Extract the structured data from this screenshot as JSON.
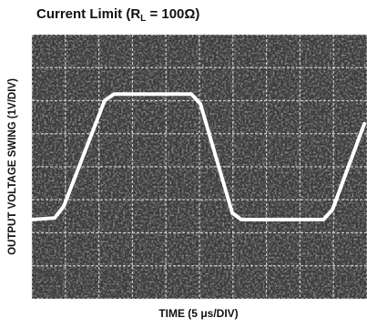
{
  "chart_data": {
    "type": "line",
    "title": [
      "Current Limit (R",
      "L",
      " = 100Ω)"
    ],
    "x_label": "TIME (5 μs/DIV)",
    "y_label": "OUTPUT VOLTAGE SWING (1V/DIV)",
    "x": [
      0,
      0.68,
      0.95,
      2.17,
      2.45,
      4.76,
      5.03,
      5.98,
      6.25,
      8.7,
      8.97,
      9.92
    ],
    "values": [
      2.4,
      2.45,
      2.8,
      6.0,
      6.2,
      6.2,
      5.9,
      2.6,
      2.4,
      2.4,
      2.7,
      5.3
    ],
    "color": "#ffffff",
    "xlim": [
      0,
      10
    ],
    "ylim": [
      0,
      8
    ],
    "xticks": [
      0,
      1,
      2,
      3,
      4,
      5,
      6,
      7,
      8,
      9,
      10
    ],
    "yticks": [
      0,
      1,
      2,
      3,
      4,
      5,
      6,
      7,
      8
    ],
    "grid": true
  }
}
